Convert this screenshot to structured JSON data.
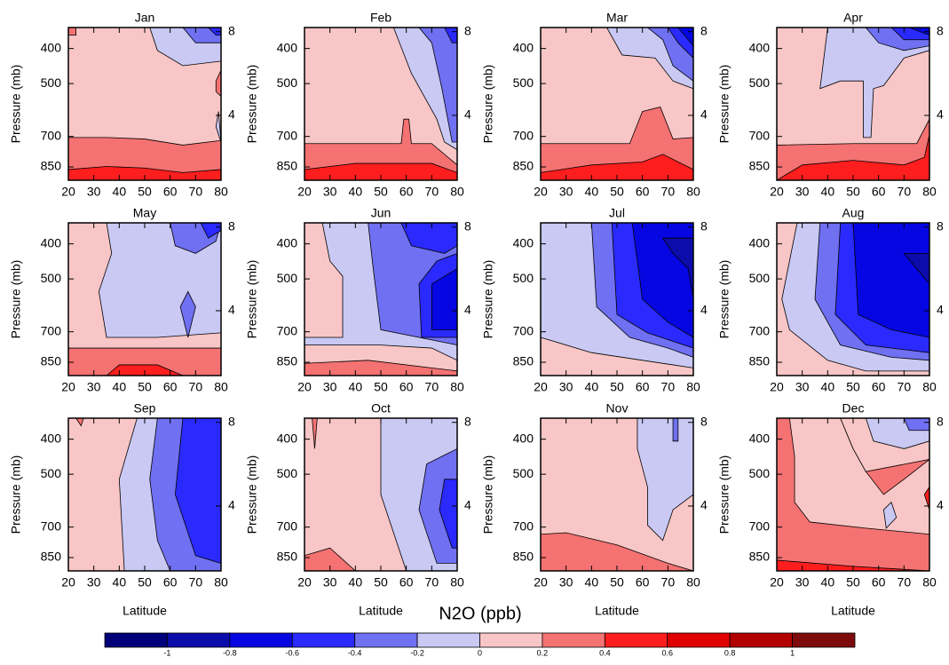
{
  "chart_data": {
    "type": "contour",
    "title": "N2O (ppb)",
    "panels": [
      {
        "title": "Jan"
      },
      {
        "title": "Feb"
      },
      {
        "title": "Mar"
      },
      {
        "title": "Apr"
      },
      {
        "title": "May"
      },
      {
        "title": "Jun"
      },
      {
        "title": "Jul"
      },
      {
        "title": "Aug"
      },
      {
        "title": "Sep"
      },
      {
        "title": "Oct"
      },
      {
        "title": "Nov"
      },
      {
        "title": "Dec"
      }
    ],
    "xlabel": "Latitude",
    "ylabel": "Pressure (mb)",
    "xlim": [
      20,
      80
    ],
    "xticks": [
      20,
      30,
      40,
      50,
      60,
      70,
      80
    ],
    "ylim": [
      925,
      350
    ],
    "ylog": true,
    "yticks": [
      400,
      500,
      700,
      850
    ],
    "y2lim": [
      0.9,
      8.2
    ],
    "y2ticks": [
      4,
      8
    ],
    "levels": [
      -1,
      -0.8,
      -0.6,
      -0.4,
      -0.2,
      0,
      0.2,
      0.4,
      0.6,
      0.8,
      1
    ],
    "colors": [
      "#00007a",
      "#0c0cab",
      "#0606e2",
      "#2a2aff",
      "#7070f2",
      "#c9c9f4",
      "#f8c6c6",
      "#f47272",
      "#ff1e1e",
      "#e00000",
      "#b20000",
      "#7e0b0b"
    ]
  }
}
